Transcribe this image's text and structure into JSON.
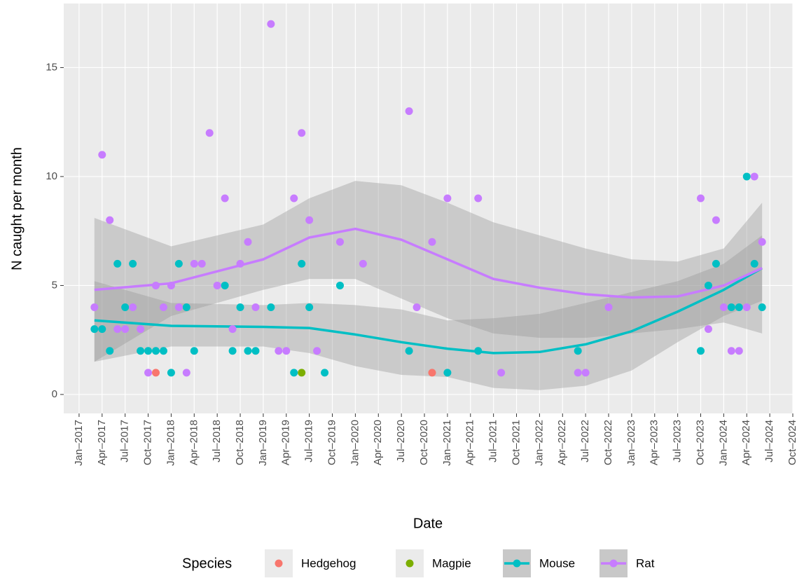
{
  "chart_data": {
    "type": "scatter",
    "x_label": "Date",
    "y_label": "N caught per month",
    "legend_title": "Species",
    "ylim": [
      -0.87,
      17.94
    ],
    "yticks": [
      0,
      5,
      10,
      15
    ],
    "xlim": [
      "2016-11",
      "2024-10"
    ],
    "xticks": [
      {
        "value": "2017-01",
        "label": "Jan–2017"
      },
      {
        "value": "2017-04",
        "label": "Apr–2017"
      },
      {
        "value": "2017-07",
        "label": "Jul–2017"
      },
      {
        "value": "2017-10",
        "label": "Oct–2017"
      },
      {
        "value": "2018-01",
        "label": "Jan–2018"
      },
      {
        "value": "2018-04",
        "label": "Apr–2018"
      },
      {
        "value": "2018-07",
        "label": "Jul–2018"
      },
      {
        "value": "2018-10",
        "label": "Oct–2018"
      },
      {
        "value": "2019-01",
        "label": "Jan–2019"
      },
      {
        "value": "2019-04",
        "label": "Apr–2019"
      },
      {
        "value": "2019-07",
        "label": "Jul–2019"
      },
      {
        "value": "2019-10",
        "label": "Oct–2019"
      },
      {
        "value": "2020-01",
        "label": "Jan–2020"
      },
      {
        "value": "2020-04",
        "label": "Apr–2020"
      },
      {
        "value": "2020-07",
        "label": "Jul–2020"
      },
      {
        "value": "2020-10",
        "label": "Oct–2020"
      },
      {
        "value": "2021-01",
        "label": "Jan–2021"
      },
      {
        "value": "2021-04",
        "label": "Apr–2021"
      },
      {
        "value": "2021-07",
        "label": "Jul–2021"
      },
      {
        "value": "2021-10",
        "label": "Oct–2021"
      },
      {
        "value": "2022-01",
        "label": "Jan–2022"
      },
      {
        "value": "2022-04",
        "label": "Apr–2022"
      },
      {
        "value": "2022-07",
        "label": "Jul–2022"
      },
      {
        "value": "2022-10",
        "label": "Oct–2022"
      },
      {
        "value": "2023-01",
        "label": "Jan–2023"
      },
      {
        "value": "2023-04",
        "label": "Apr–2023"
      },
      {
        "value": "2023-07",
        "label": "Jul–2023"
      },
      {
        "value": "2023-10",
        "label": "Oct–2023"
      },
      {
        "value": "2024-01",
        "label": "Jan–2024"
      },
      {
        "value": "2024-04",
        "label": "Apr–2024"
      },
      {
        "value": "2024-07",
        "label": "Jul–2024"
      },
      {
        "value": "2024-10",
        "label": "Oct–2024"
      }
    ],
    "grid": true,
    "series": [
      {
        "name": "Hedgehog",
        "color": "#F8766D",
        "x": [
          "2017-11",
          "2020-11"
        ],
        "values": [
          1,
          1
        ]
      },
      {
        "name": "Magpie",
        "color": "#7CAE00",
        "x": [
          "2019-06"
        ],
        "values": [
          1
        ]
      },
      {
        "name": "Mouse",
        "color": "#00BFC4",
        "x": [
          "2017-03",
          "2017-04",
          "2017-05",
          "2017-06",
          "2017-07",
          "2017-08",
          "2017-09",
          "2017-10",
          "2017-11",
          "2017-12",
          "2018-01",
          "2018-02",
          "2018-03",
          "2018-04",
          "2018-08",
          "2018-09",
          "2018-10",
          "2018-11",
          "2018-12",
          "2019-02",
          "2019-05",
          "2019-06",
          "2019-07",
          "2019-09",
          "2019-11",
          "2020-08",
          "2021-01",
          "2021-05",
          "2022-06",
          "2023-10",
          "2023-11",
          "2023-12",
          "2024-02",
          "2024-03",
          "2024-04",
          "2024-05",
          "2024-06"
        ],
        "values": [
          3,
          3,
          2,
          6,
          4,
          6,
          2,
          2,
          2,
          2,
          1,
          6,
          4,
          2,
          5,
          2,
          4,
          2,
          2,
          4,
          1,
          6,
          4,
          1,
          5,
          2,
          1,
          2,
          2,
          2,
          5,
          6,
          4,
          4,
          10,
          6,
          4
        ],
        "fit": {
          "x": [
            "2017-03",
            "2018-01",
            "2019-01",
            "2019-07",
            "2020-01",
            "2020-07",
            "2021-01",
            "2021-07",
            "2022-01",
            "2022-07",
            "2023-01",
            "2023-07",
            "2024-01",
            "2024-06"
          ],
          "values": [
            3.4,
            3.15,
            3.1,
            3.05,
            2.75,
            2.4,
            2.1,
            1.9,
            1.95,
            2.3,
            2.9,
            3.8,
            4.8,
            5.8
          ],
          "lower": [
            1.5,
            2.2,
            2.2,
            1.9,
            1.3,
            0.9,
            0.8,
            0.3,
            0.2,
            0.4,
            1.1,
            2.4,
            3.6,
            4.3
          ],
          "upper": [
            5.2,
            4.2,
            4.1,
            4.2,
            4.1,
            3.9,
            3.4,
            3.5,
            3.7,
            4.2,
            4.7,
            5.2,
            6.0,
            7.3
          ]
        }
      },
      {
        "name": "Rat",
        "color": "#C77CFF",
        "x": [
          "2017-03",
          "2017-04",
          "2017-05",
          "2017-06",
          "2017-07",
          "2017-08",
          "2017-09",
          "2017-10",
          "2017-11",
          "2017-12",
          "2018-01",
          "2018-02",
          "2018-03",
          "2018-04",
          "2018-05",
          "2018-06",
          "2018-07",
          "2018-08",
          "2018-09",
          "2018-10",
          "2018-11",
          "2018-12",
          "2019-02",
          "2019-03",
          "2019-04",
          "2019-05",
          "2019-06",
          "2019-07",
          "2019-08",
          "2019-11",
          "2020-02",
          "2020-08",
          "2020-09",
          "2020-11",
          "2021-01",
          "2021-05",
          "2021-08",
          "2022-06",
          "2022-07",
          "2022-10",
          "2023-10",
          "2023-11",
          "2023-12",
          "2024-01",
          "2024-02",
          "2024-03",
          "2024-04",
          "2024-05",
          "2024-06"
        ],
        "values": [
          4,
          11,
          8,
          3,
          3,
          4,
          3,
          1,
          5,
          4,
          5,
          4,
          1,
          6,
          6,
          12,
          5,
          9,
          3,
          6,
          7,
          4,
          17,
          2,
          2,
          9,
          12,
          8,
          2,
          7,
          6,
          13,
          4,
          7,
          9,
          9,
          1,
          1,
          1,
          4,
          9,
          3,
          8,
          4,
          2,
          2,
          4,
          10,
          7
        ],
        "fit": {
          "x": [
            "2017-03",
            "2018-01",
            "2019-01",
            "2019-07",
            "2020-01",
            "2020-07",
            "2021-01",
            "2021-07",
            "2022-01",
            "2022-07",
            "2023-01",
            "2023-07",
            "2024-01",
            "2024-06"
          ],
          "values": [
            4.8,
            5.1,
            6.2,
            7.2,
            7.6,
            7.1,
            6.2,
            5.3,
            4.9,
            4.6,
            4.45,
            4.5,
            5.0,
            5.8
          ],
          "lower": [
            1.5,
            3.6,
            4.8,
            5.3,
            5.3,
            4.4,
            3.5,
            2.8,
            2.6,
            2.6,
            2.8,
            3.0,
            3.3,
            2.8
          ],
          "upper": [
            8.1,
            6.8,
            7.8,
            9.0,
            9.8,
            9.6,
            8.8,
            7.9,
            7.3,
            6.7,
            6.2,
            6.1,
            6.7,
            8.8
          ]
        }
      }
    ]
  }
}
